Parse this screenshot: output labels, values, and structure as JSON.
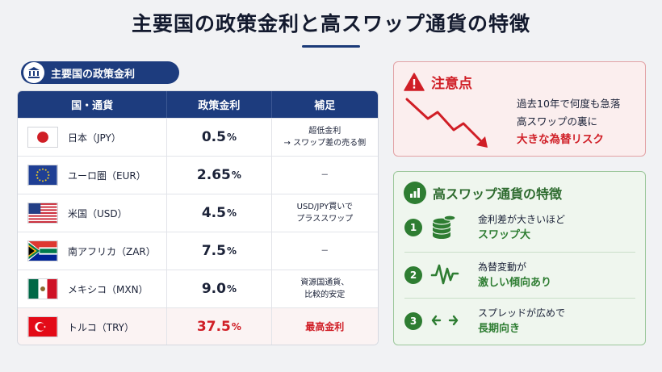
{
  "title": "主要国の政策金利と高スワップ通貨の特徴",
  "table_section": {
    "label": "主要国の政策金利",
    "headers": [
      "国・通貨",
      "政策金利",
      "補足"
    ],
    "rows": [
      {
        "country": "日本（JPY）",
        "rate": "0.5",
        "unit": "%",
        "note1": "超低金利",
        "note2": "→ スワップ差の売る側",
        "flag": "flag-japan"
      },
      {
        "country": "ユーロ圏（EUR）",
        "rate": "2.65",
        "unit": "%",
        "note1": "－",
        "note2": "",
        "flag": "flag-eu"
      },
      {
        "country": "米国（USD）",
        "rate": "4.5",
        "unit": "%",
        "note1": "USD/JPY買いで",
        "note2": "プラススワップ",
        "flag": "flag-usa"
      },
      {
        "country": "南アフリカ（ZAR）",
        "rate": "7.5",
        "unit": "%",
        "note1": "－",
        "note2": "",
        "flag": "flag-south-africa"
      },
      {
        "country": "メキシコ（MXN）",
        "rate": "9.0",
        "unit": "%",
        "note1": "資源国通貨、",
        "note2": "比較的安定",
        "flag": "flag-mexico"
      },
      {
        "country": "トルコ（TRY）",
        "rate": "37.5",
        "unit": "%",
        "note1": "最高金利",
        "note2": "",
        "flag": "flag-turkey"
      }
    ]
  },
  "caution": {
    "title": "注意点",
    "line1": "過去10年で何度も急落",
    "line2": "高スワップの裏に",
    "line3": "大きな為替リスク",
    "accent": "#d01e26",
    "icon": "warning-icon"
  },
  "features": {
    "title": "高スワップ通貨の特徴",
    "accent": "#2e7d32",
    "items": [
      {
        "num": "1",
        "line1": "金利差が大きいほど",
        "line2": "スワップ大",
        "icon": "coin-stack-icon"
      },
      {
        "num": "2",
        "line1": "為替変動が",
        "line2": "激しい傾向あり",
        "icon": "volatility-icon"
      },
      {
        "num": "3",
        "line1": "スプレッドが広めで",
        "line2": "長期向き",
        "icon": "spread-arrows-icon"
      }
    ]
  },
  "colors": {
    "navy": "#1d3c7e",
    "red": "#d01e26",
    "green": "#2e7d32"
  }
}
